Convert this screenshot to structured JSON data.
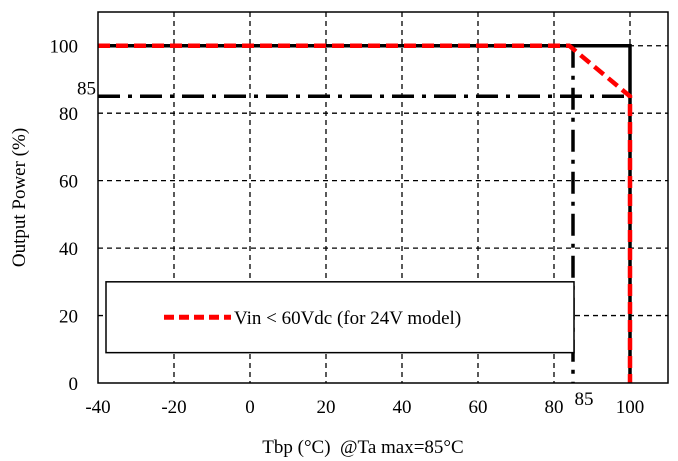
{
  "chart_data": {
    "type": "line",
    "xlabel": "Tbp (°C)  @Ta max=85°C",
    "ylabel": "Output Power (%)",
    "xlim": [
      -40,
      110
    ],
    "ylim": [
      0,
      110
    ],
    "x_ticks": [
      "-40",
      "-20",
      "0",
      "20",
      "40",
      "60",
      "80",
      "100"
    ],
    "x_tick_values": [
      -40,
      -20,
      0,
      20,
      40,
      60,
      80,
      100
    ],
    "y_ticks": [
      "0",
      "20",
      "40",
      "60",
      "80",
      "100"
    ],
    "y_tick_values": [
      0,
      20,
      40,
      60,
      80,
      100
    ],
    "grid": true,
    "annotations": [
      {
        "text": "85",
        "axis": "y",
        "value": 85
      },
      {
        "text": "85",
        "axis": "x",
        "value": 85
      }
    ],
    "series": [
      {
        "name": "",
        "color": "#000000",
        "style": "solid",
        "points": [
          [
            -40,
            100
          ],
          [
            100,
            100
          ],
          [
            100,
            0
          ]
        ]
      },
      {
        "name": "",
        "color": "#000000",
        "style": "dash-dot",
        "points": [
          [
            -40,
            85
          ],
          [
            100,
            85
          ]
        ]
      },
      {
        "name": "",
        "color": "#000000",
        "style": "dash-dot",
        "points": [
          [
            85,
            100
          ],
          [
            85,
            0
          ]
        ]
      },
      {
        "name": "Vin < 60Vdc (for 24V model)",
        "color": "#ff0000",
        "style": "dashed",
        "points": [
          [
            -40,
            100
          ],
          [
            84,
            100
          ],
          [
            100,
            85
          ],
          [
            100,
            0
          ]
        ]
      }
    ],
    "legend": {
      "placement": "bottom-left",
      "entries": [
        "Vin < 60Vdc (for 24V model)"
      ]
    }
  }
}
